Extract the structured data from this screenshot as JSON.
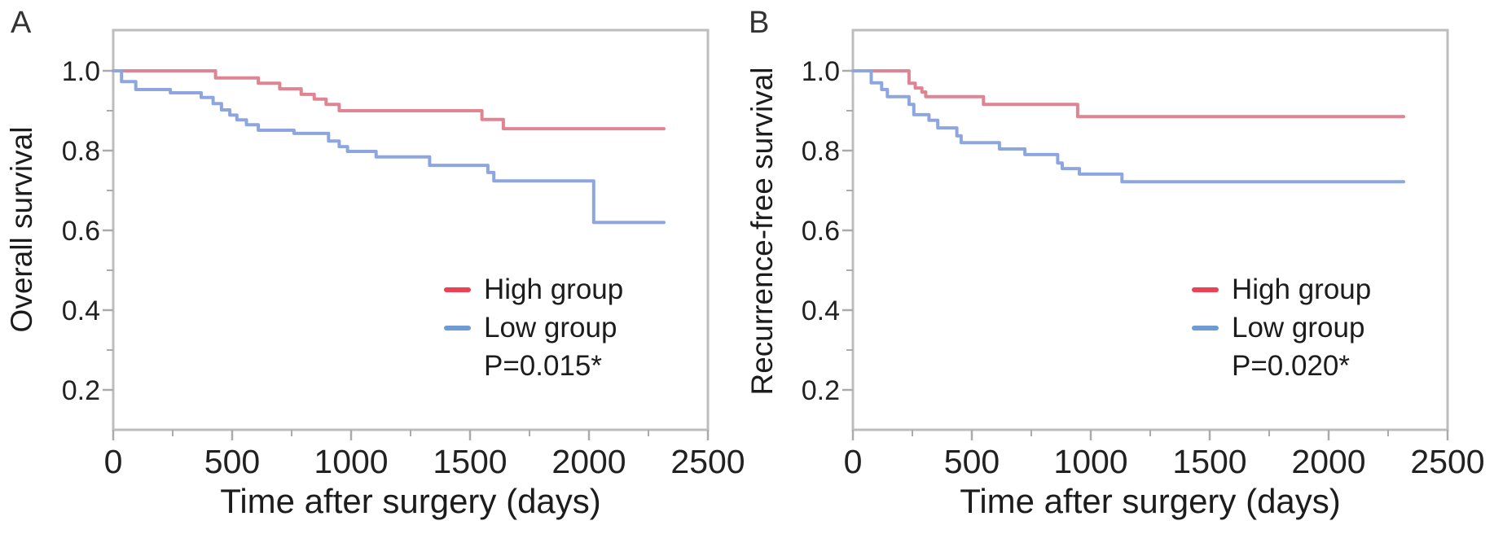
{
  "figure": {
    "background": "#ffffff",
    "axis_color": "#bdbdbd",
    "tick_color": "#ababab",
    "text_color": "#1f1f1f"
  },
  "chart_data": [
    {
      "type": "line",
      "subtype": "kaplan-meier-step",
      "panel_label": "A",
      "ylabel": "Overall survival",
      "xlabel": "Time after surgery (days)",
      "xlim": [
        0,
        2500
      ],
      "ylim": [
        0.1,
        1.1
      ],
      "x_ticks": [
        0,
        500,
        1000,
        1500,
        2000,
        2500
      ],
      "x_tick_labels": [
        "0",
        "500",
        "1000",
        "1500",
        "2000",
        "2500"
      ],
      "x_minor_ticks": [
        250,
        750,
        1250,
        1750,
        2250
      ],
      "y_ticks": [
        1.0,
        0.8,
        0.6,
        0.4,
        0.2
      ],
      "y_tick_labels": [
        "1.0",
        "0.8",
        "0.6",
        "0.4",
        "0.2"
      ],
      "y_minor_ticks": [
        0.9,
        0.7,
        0.5,
        0.3
      ],
      "grid": false,
      "legend_position": "inside-lower-right",
      "p_value_label": "P=0.015*",
      "curve_end_day": 2315,
      "series": [
        {
          "name": "High group",
          "color": "#df8492",
          "legend_color": "#ee3f55",
          "steps": [
            [
              0,
              1.0
            ],
            [
              430,
              0.982
            ],
            [
              610,
              0.969
            ],
            [
              700,
              0.955
            ],
            [
              790,
              0.941
            ],
            [
              845,
              0.929
            ],
            [
              895,
              0.916
            ],
            [
              950,
              0.9
            ],
            [
              1550,
              0.878
            ],
            [
              1640,
              0.855
            ]
          ]
        },
        {
          "name": "Low group",
          "color": "#8ea6e0",
          "legend_color": "#6e9bd3",
          "steps": [
            [
              0,
              1.0
            ],
            [
              35,
              0.973
            ],
            [
              95,
              0.953
            ],
            [
              240,
              0.945
            ],
            [
              370,
              0.933
            ],
            [
              420,
              0.918
            ],
            [
              455,
              0.902
            ],
            [
              490,
              0.889
            ],
            [
              520,
              0.877
            ],
            [
              560,
              0.865
            ],
            [
              610,
              0.851
            ],
            [
              760,
              0.843
            ],
            [
              905,
              0.824
            ],
            [
              950,
              0.81
            ],
            [
              985,
              0.798
            ],
            [
              1105,
              0.784
            ],
            [
              1330,
              0.763
            ],
            [
              1575,
              0.745
            ],
            [
              1600,
              0.724
            ],
            [
              2020,
              0.62
            ]
          ]
        }
      ]
    },
    {
      "type": "line",
      "subtype": "kaplan-meier-step",
      "panel_label": "B",
      "ylabel": "Recurrence-free survival",
      "xlabel": "Time after surgery (days)",
      "xlim": [
        0,
        2500
      ],
      "ylim": [
        0.1,
        1.1
      ],
      "x_ticks": [
        0,
        500,
        1000,
        1500,
        2000,
        2500
      ],
      "x_tick_labels": [
        "0",
        "500",
        "1000",
        "1500",
        "2000",
        "2500"
      ],
      "x_minor_ticks": [
        250,
        750,
        1250,
        1750,
        2250
      ],
      "y_ticks": [
        1.0,
        0.8,
        0.6,
        0.4,
        0.2
      ],
      "y_tick_labels": [
        "1.0",
        "0.8",
        "0.6",
        "0.4",
        "0.2"
      ],
      "y_minor_ticks": [
        0.9,
        0.7,
        0.5,
        0.3
      ],
      "grid": false,
      "legend_position": "inside-lower-right",
      "p_value_label": "P=0.020*",
      "curve_end_day": 2315,
      "series": [
        {
          "name": "High group",
          "color": "#df8492",
          "legend_color": "#ee3f55",
          "steps": [
            [
              0,
              1.0
            ],
            [
              236,
              0.969
            ],
            [
              262,
              0.957
            ],
            [
              290,
              0.947
            ],
            [
              306,
              0.935
            ],
            [
              549,
              0.916
            ],
            [
              945,
              0.885
            ]
          ]
        },
        {
          "name": "Low group",
          "color": "#8ea6e0",
          "legend_color": "#6e9bd3",
          "steps": [
            [
              0,
              1.0
            ],
            [
              77,
              0.97
            ],
            [
              121,
              0.953
            ],
            [
              145,
              0.935
            ],
            [
              236,
              0.916
            ],
            [
              256,
              0.89
            ],
            [
              320,
              0.876
            ],
            [
              357,
              0.857
            ],
            [
              437,
              0.837
            ],
            [
              455,
              0.82
            ],
            [
              616,
              0.804
            ],
            [
              723,
              0.79
            ],
            [
              861,
              0.769
            ],
            [
              880,
              0.755
            ],
            [
              952,
              0.741
            ],
            [
              1131,
              0.722
            ]
          ]
        }
      ]
    }
  ]
}
